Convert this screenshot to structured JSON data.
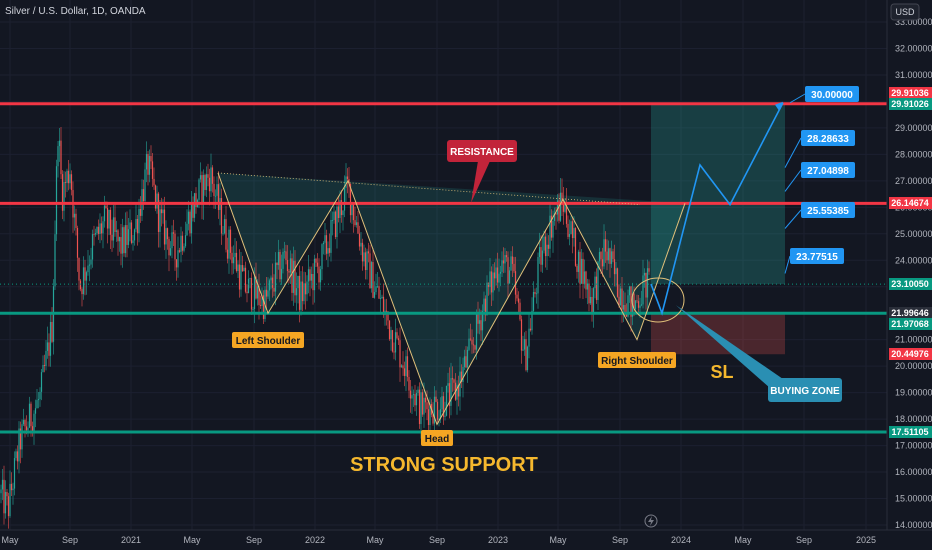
{
  "header": {
    "title": "Silver / U.S. Dollar, 1D, OANDA"
  },
  "currency_button": {
    "label": "USD"
  },
  "colors": {
    "bg": "#131722",
    "up": "#26a69a",
    "down": "#ef5350",
    "red_line": "#f23645",
    "green_line": "#089981",
    "label_bg": "#f5a623",
    "blue": "#2196f3",
    "cyan_box": "#2a8fb3",
    "resistance_box": "#c2243a"
  },
  "chart_data": {
    "type": "candlestick",
    "y_axis": {
      "ylim": [
        14.0,
        33.6
      ],
      "ticks": [
        "33.00000",
        "32.00000",
        "31.00000",
        "30.00000",
        "29.00000",
        "28.00000",
        "27.00000",
        "26.00000",
        "25.00000",
        "24.00000",
        "23.00000",
        "22.00000",
        "21.00000",
        "20.00000",
        "19.00000",
        "18.00000",
        "17.00000",
        "16.00000",
        "15.00000",
        "14.00000"
      ]
    },
    "x_axis": {
      "ticks": [
        "May",
        "Sep",
        "2021",
        "May",
        "Sep",
        "2022",
        "May",
        "Sep",
        "2023",
        "May",
        "Sep",
        "2024",
        "May",
        "Sep",
        "2025"
      ]
    },
    "horizontal_lines": [
      {
        "name": "resistance-top",
        "value": 29.91026,
        "color": "red"
      },
      {
        "name": "resistance-mid",
        "value": 26.14674,
        "color": "red"
      },
      {
        "name": "neckline-support",
        "value": 21.99646,
        "color": "green"
      },
      {
        "name": "strong-support",
        "value": 17.51105,
        "color": "green"
      }
    ],
    "price_tags": [
      {
        "value": 29.91036,
        "label": "29.91036",
        "color": "#f23645"
      },
      {
        "value": 29.91026,
        "label": "29.91026",
        "color": "#089981"
      },
      {
        "value": 26.14674,
        "label": "26.14674",
        "color": "#f23645"
      },
      {
        "value": 23.1005,
        "label": "23.10050",
        "color": "#089981"
      },
      {
        "value": 21.99646,
        "label": "21.99646",
        "color": "#2a2e39"
      },
      {
        "value": 21.97068,
        "label": "21.97068",
        "color": "#089981"
      },
      {
        "value": 20.44976,
        "label": "20.44976",
        "color": "#f23645"
      },
      {
        "value": 17.51105,
        "label": "17.51105",
        "color": "#089981"
      }
    ],
    "targets": [
      {
        "label": "30.00000",
        "value": 30.0
      },
      {
        "label": "28.28633",
        "value": 28.28633
      },
      {
        "label": "27.04898",
        "value": 27.04898
      },
      {
        "label": "25.55385",
        "value": 25.55385
      },
      {
        "label": "23.77515",
        "value": 23.77515
      }
    ],
    "annotations": {
      "left_shoulder": "Left Shoulder",
      "head": "Head",
      "right_shoulder": "Right Shoulder",
      "resistance": "RESISTANCE",
      "strong_support": "STRONG SUPPORT",
      "sl": "SL",
      "buying_zone": "BUYING ZONE"
    }
  }
}
